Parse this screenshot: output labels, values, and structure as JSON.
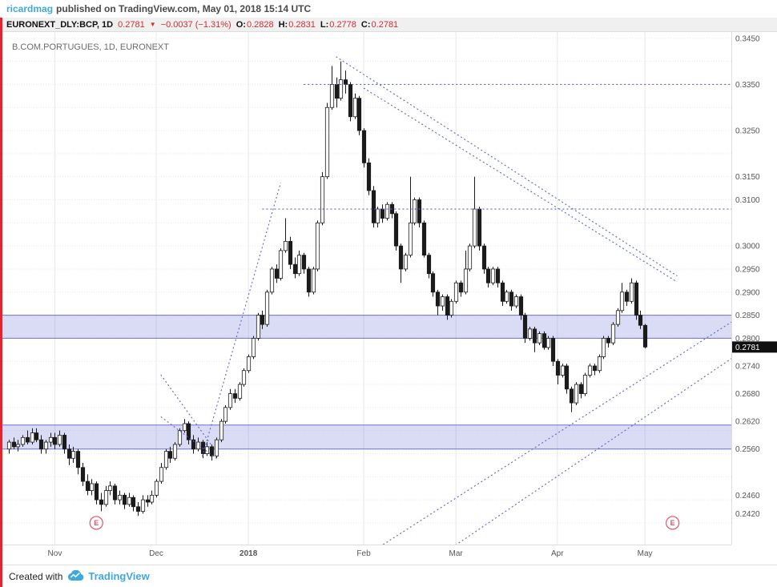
{
  "header": {
    "author": "ricardmag",
    "publish_text": "published on TradingView.com, May 01, 2018 15:14 UTC"
  },
  "symbol_bar": {
    "symbol": "EURONEXT_DLY:BCP, 1D",
    "last": "0.2781",
    "direction": "▼",
    "change": "−0.0037 (−1.31%)",
    "ohlc": [
      {
        "label": "O:",
        "value": "0.2828"
      },
      {
        "label": "H:",
        "value": "0.2831"
      },
      {
        "label": "L:",
        "value": "0.2778"
      },
      {
        "label": "C:",
        "value": "0.2781"
      }
    ]
  },
  "footer": {
    "created_with": "Created with",
    "brand": "TradingView"
  },
  "colors": {
    "negative": "#cc2f35",
    "author": "#3fa9dc",
    "brand": "#3fa9dc",
    "border_red": "#e8232e"
  },
  "chart_data": {
    "type": "candlestick",
    "title": "B.COM.PORTUGUES, 1D, EURONEXT",
    "symbol": "EURONEXT_DLY:BCP",
    "interval": "1D",
    "last_price": 0.2781,
    "last_price_label": "0.2781",
    "ohlc_format": [
      "open",
      "high",
      "low",
      "close"
    ],
    "y_axis": {
      "min": 0.236,
      "max": 0.346,
      "ticks": [
        "0.3450",
        "0.3350",
        "0.3250",
        "0.3150",
        "0.3100",
        "0.3000",
        "0.2950",
        "0.2900",
        "0.2850",
        "0.2800",
        "0.2740",
        "0.2680",
        "0.2620",
        "0.2560",
        "0.2460",
        "0.2420"
      ]
    },
    "x_axis": {
      "labels": [
        {
          "text": "Nov",
          "index": 10
        },
        {
          "text": "Dec",
          "index": 32
        },
        {
          "text": "2018",
          "index": 52
        },
        {
          "text": "Feb",
          "index": 77
        },
        {
          "text": "Mar",
          "index": 97
        },
        {
          "text": "Apr",
          "index": 119
        },
        {
          "text": "May",
          "index": 138
        }
      ]
    },
    "bands": [
      {
        "top": 0.285,
        "bottom": 0.28
      },
      {
        "top": 0.2612,
        "bottom": 0.256
      }
    ],
    "hlines": [
      {
        "price": 0.335,
        "from_index": 64,
        "to_index": 158
      },
      {
        "price": 0.308,
        "from_index": 55,
        "to_index": 158
      }
    ],
    "trendlines": [
      {
        "from": [
          71,
          0.341
        ],
        "to": [
          145,
          0.2935
        ]
      },
      {
        "from": [
          77,
          0.3342
        ],
        "to": [
          145,
          0.2922
        ]
      },
      {
        "from": [
          79,
          0.2339
        ],
        "to": [
          157,
          0.2835
        ]
      },
      {
        "from": [
          94,
          0.2332
        ],
        "to": [
          157,
          0.2756
        ]
      },
      {
        "from": [
          42,
          0.2544
        ],
        "to": [
          59,
          0.3137
        ]
      },
      {
        "from": [
          33,
          0.2721
        ],
        "to": [
          44,
          0.2568
        ]
      },
      {
        "from": [
          33,
          0.263
        ],
        "to": [
          45,
          0.254
        ]
      }
    ],
    "markers": [
      {
        "label": "E",
        "index": 19,
        "price": 0.24
      },
      {
        "label": "E",
        "index": 144,
        "price": 0.24
      }
    ],
    "colors": {
      "up": "#ffffff",
      "down": "#1b1b1b",
      "outline": "#1b1b1b",
      "drawing": "#5b63c8",
      "band_fill": "rgba(122,128,220,0.28)",
      "band_border": "#6a70d0",
      "grid": "#e7e7ea",
      "axis_text": "#555555",
      "marker": "#d9556a",
      "badge_bg": "#101010",
      "badge_text": "#ffffff",
      "watermark": "#6b6b6b"
    },
    "candles": [
      [
        0.256,
        0.258,
        0.255,
        0.2575
      ],
      [
        0.2575,
        0.2585,
        0.256,
        0.2565
      ],
      [
        0.2565,
        0.258,
        0.2555,
        0.257
      ],
      [
        0.257,
        0.259,
        0.2565,
        0.2585
      ],
      [
        0.2585,
        0.26,
        0.257,
        0.2575
      ],
      [
        0.2575,
        0.2605,
        0.257,
        0.2595
      ],
      [
        0.2595,
        0.2605,
        0.2575,
        0.258
      ],
      [
        0.258,
        0.259,
        0.255,
        0.256
      ],
      [
        0.256,
        0.258,
        0.255,
        0.2575
      ],
      [
        0.2575,
        0.2595,
        0.2565,
        0.2585
      ],
      [
        0.2585,
        0.2595,
        0.256,
        0.257
      ],
      [
        0.257,
        0.26,
        0.2565,
        0.259
      ],
      [
        0.259,
        0.2595,
        0.255,
        0.256
      ],
      [
        0.256,
        0.257,
        0.2525,
        0.254
      ],
      [
        0.254,
        0.2565,
        0.253,
        0.2555
      ],
      [
        0.2555,
        0.256,
        0.2505,
        0.252
      ],
      [
        0.252,
        0.253,
        0.248,
        0.249
      ],
      [
        0.249,
        0.2505,
        0.246,
        0.247
      ],
      [
        0.247,
        0.2495,
        0.246,
        0.2485
      ],
      [
        0.2485,
        0.249,
        0.244,
        0.245
      ],
      [
        0.245,
        0.2465,
        0.2425,
        0.244
      ],
      [
        0.244,
        0.248,
        0.2435,
        0.247
      ],
      [
        0.247,
        0.249,
        0.246,
        0.248
      ],
      [
        0.248,
        0.2485,
        0.244,
        0.245
      ],
      [
        0.245,
        0.247,
        0.244,
        0.246
      ],
      [
        0.246,
        0.2465,
        0.243,
        0.244
      ],
      [
        0.244,
        0.2465,
        0.2435,
        0.2455
      ],
      [
        0.2455,
        0.246,
        0.2425,
        0.2435
      ],
      [
        0.2435,
        0.2445,
        0.2415,
        0.2425
      ],
      [
        0.2425,
        0.246,
        0.242,
        0.245
      ],
      [
        0.245,
        0.246,
        0.2435,
        0.2445
      ],
      [
        0.2445,
        0.247,
        0.244,
        0.246
      ],
      [
        0.246,
        0.2495,
        0.2455,
        0.249
      ],
      [
        0.249,
        0.253,
        0.2485,
        0.252
      ],
      [
        0.252,
        0.256,
        0.2515,
        0.2555
      ],
      [
        0.2555,
        0.2565,
        0.253,
        0.254
      ],
      [
        0.254,
        0.2575,
        0.2535,
        0.257
      ],
      [
        0.257,
        0.2605,
        0.2565,
        0.26
      ],
      [
        0.26,
        0.2625,
        0.2595,
        0.2615
      ],
      [
        0.2615,
        0.262,
        0.257,
        0.258
      ],
      [
        0.258,
        0.259,
        0.255,
        0.256
      ],
      [
        0.256,
        0.2585,
        0.2555,
        0.2575
      ],
      [
        0.2575,
        0.258,
        0.254,
        0.255
      ],
      [
        0.255,
        0.2575,
        0.2545,
        0.2565
      ],
      [
        0.2565,
        0.257,
        0.2535,
        0.2545
      ],
      [
        0.2545,
        0.2585,
        0.254,
        0.258
      ],
      [
        0.258,
        0.2625,
        0.2575,
        0.262
      ],
      [
        0.262,
        0.2655,
        0.2615,
        0.265
      ],
      [
        0.265,
        0.269,
        0.2645,
        0.268
      ],
      [
        0.268,
        0.269,
        0.266,
        0.267
      ],
      [
        0.267,
        0.2705,
        0.2665,
        0.27
      ],
      [
        0.27,
        0.2735,
        0.2695,
        0.273
      ],
      [
        0.273,
        0.2765,
        0.2725,
        0.276
      ],
      [
        0.276,
        0.2805,
        0.2755,
        0.28
      ],
      [
        0.28,
        0.2855,
        0.2795,
        0.285
      ],
      [
        0.285,
        0.286,
        0.282,
        0.283
      ],
      [
        0.283,
        0.2905,
        0.2825,
        0.29
      ],
      [
        0.29,
        0.2955,
        0.2895,
        0.295
      ],
      [
        0.295,
        0.296,
        0.292,
        0.293
      ],
      [
        0.293,
        0.2995,
        0.2925,
        0.299
      ],
      [
        0.299,
        0.306,
        0.2985,
        0.301
      ],
      [
        0.301,
        0.302,
        0.295,
        0.296
      ],
      [
        0.296,
        0.2975,
        0.293,
        0.294
      ],
      [
        0.294,
        0.299,
        0.2935,
        0.298
      ],
      [
        0.298,
        0.2985,
        0.294,
        0.295
      ],
      [
        0.295,
        0.2955,
        0.289,
        0.29
      ],
      [
        0.29,
        0.2955,
        0.2895,
        0.295
      ],
      [
        0.295,
        0.3055,
        0.2945,
        0.305
      ],
      [
        0.305,
        0.316,
        0.3045,
        0.315
      ],
      [
        0.315,
        0.331,
        0.3145,
        0.33
      ],
      [
        0.33,
        0.339,
        0.3295,
        0.335
      ],
      [
        0.335,
        0.3365,
        0.33,
        0.332
      ],
      [
        0.332,
        0.34,
        0.3315,
        0.336
      ],
      [
        0.336,
        0.338,
        0.333,
        0.335
      ],
      [
        0.335,
        0.3355,
        0.327,
        0.328
      ],
      [
        0.328,
        0.333,
        0.3275,
        0.332
      ],
      [
        0.332,
        0.3325,
        0.324,
        0.325
      ],
      [
        0.325,
        0.3255,
        0.317,
        0.318
      ],
      [
        0.318,
        0.319,
        0.311,
        0.312
      ],
      [
        0.312,
        0.313,
        0.304,
        0.305
      ],
      [
        0.305,
        0.3085,
        0.304,
        0.308
      ],
      [
        0.308,
        0.309,
        0.305,
        0.306
      ],
      [
        0.306,
        0.3095,
        0.3055,
        0.309
      ],
      [
        0.309,
        0.3095,
        0.306,
        0.307
      ],
      [
        0.307,
        0.3075,
        0.299,
        0.3
      ],
      [
        0.3,
        0.3005,
        0.292,
        0.295
      ],
      [
        0.295,
        0.2985,
        0.2945,
        0.298
      ],
      [
        0.298,
        0.315,
        0.2975,
        0.305
      ],
      [
        0.305,
        0.3105,
        0.3045,
        0.31
      ],
      [
        0.31,
        0.3105,
        0.304,
        0.305
      ],
      [
        0.305,
        0.3055,
        0.2975,
        0.298
      ],
      [
        0.298,
        0.2985,
        0.293,
        0.294
      ],
      [
        0.294,
        0.2945,
        0.289,
        0.29
      ],
      [
        0.29,
        0.2905,
        0.285,
        0.287
      ],
      [
        0.287,
        0.2895,
        0.286,
        0.289
      ],
      [
        0.289,
        0.2895,
        0.284,
        0.285
      ],
      [
        0.285,
        0.2885,
        0.2845,
        0.288
      ],
      [
        0.288,
        0.2925,
        0.2875,
        0.292
      ],
      [
        0.292,
        0.2925,
        0.289,
        0.29
      ],
      [
        0.29,
        0.299,
        0.2895,
        0.295
      ],
      [
        0.295,
        0.3005,
        0.2945,
        0.3
      ],
      [
        0.3,
        0.315,
        0.2995,
        0.308
      ],
      [
        0.308,
        0.3085,
        0.299,
        0.3
      ],
      [
        0.3,
        0.3005,
        0.294,
        0.295
      ],
      [
        0.295,
        0.2955,
        0.291,
        0.292
      ],
      [
        0.292,
        0.2955,
        0.2915,
        0.295
      ],
      [
        0.295,
        0.2955,
        0.291,
        0.292
      ],
      [
        0.292,
        0.2925,
        0.287,
        0.288
      ],
      [
        0.288,
        0.2905,
        0.2875,
        0.29
      ],
      [
        0.29,
        0.2905,
        0.286,
        0.287
      ],
      [
        0.287,
        0.2895,
        0.2865,
        0.289
      ],
      [
        0.289,
        0.2895,
        0.284,
        0.285
      ],
      [
        0.285,
        0.2855,
        0.279,
        0.28
      ],
      [
        0.28,
        0.2825,
        0.2795,
        0.282
      ],
      [
        0.282,
        0.2825,
        0.277,
        0.279
      ],
      [
        0.279,
        0.2815,
        0.2785,
        0.281
      ],
      [
        0.281,
        0.2815,
        0.2775,
        0.278
      ],
      [
        0.278,
        0.2805,
        0.2775,
        0.28
      ],
      [
        0.28,
        0.2805,
        0.274,
        0.275
      ],
      [
        0.275,
        0.2755,
        0.27,
        0.272
      ],
      [
        0.272,
        0.2745,
        0.2715,
        0.274
      ],
      [
        0.274,
        0.2745,
        0.268,
        0.269
      ],
      [
        0.269,
        0.2695,
        0.264,
        0.266
      ],
      [
        0.266,
        0.2705,
        0.2655,
        0.27
      ],
      [
        0.27,
        0.2705,
        0.267,
        0.268
      ],
      [
        0.268,
        0.2725,
        0.2675,
        0.272
      ],
      [
        0.272,
        0.2745,
        0.2715,
        0.274
      ],
      [
        0.274,
        0.2745,
        0.272,
        0.273
      ],
      [
        0.273,
        0.2765,
        0.2725,
        0.276
      ],
      [
        0.276,
        0.2805,
        0.2755,
        0.28
      ],
      [
        0.28,
        0.2805,
        0.278,
        0.279
      ],
      [
        0.279,
        0.2835,
        0.2785,
        0.283
      ],
      [
        0.283,
        0.2865,
        0.2825,
        0.286
      ],
      [
        0.286,
        0.292,
        0.2855,
        0.29
      ],
      [
        0.29,
        0.2905,
        0.287,
        0.288
      ],
      [
        0.288,
        0.293,
        0.2875,
        0.292
      ],
      [
        0.292,
        0.2925,
        0.284,
        0.285
      ],
      [
        0.285,
        0.286,
        0.282,
        0.2828
      ],
      [
        0.2828,
        0.2831,
        0.2778,
        0.2781
      ]
    ]
  }
}
